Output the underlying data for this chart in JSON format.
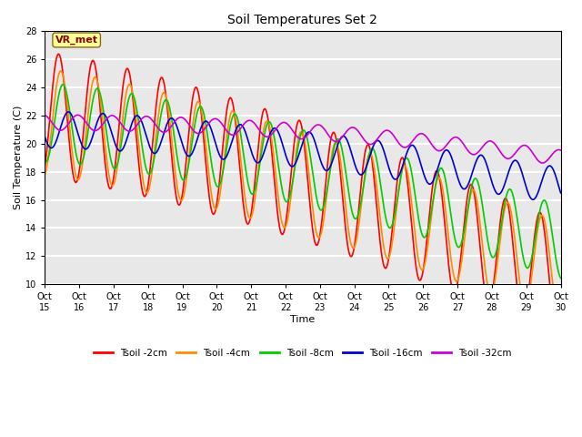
{
  "title": "Soil Temperatures Set 2",
  "xlabel": "Time",
  "ylabel": "Soil Temperature (C)",
  "annotation_label": "VR_met",
  "annotation_box_color": "#FFFF99",
  "annotation_text_color": "#8B0000",
  "annotation_border_color": "#8B6914",
  "ylim": [
    10,
    28
  ],
  "yticks": [
    10,
    12,
    14,
    16,
    18,
    20,
    22,
    24,
    26,
    28
  ],
  "xtick_labels": [
    "Oct\n15",
    "Oct\n16",
    "Oct\n17",
    "Oct\n18",
    "Oct\n19",
    "Oct\n20",
    "Oct\n21",
    "Oct\n22",
    "Oct\n23",
    "Oct\n24",
    "Oct\n25",
    "Oct\n26",
    "Oct\n27",
    "Oct\n28",
    "Oct\n29",
    "Oct\n30"
  ],
  "series": {
    "Tsoil -2cm": {
      "color": "#FF0000"
    },
    "Tsoil -4cm": {
      "color": "#FF8C00"
    },
    "Tsoil -8cm": {
      "color": "#00CC00"
    },
    "Tsoil -16cm": {
      "color": "#0000CD"
    },
    "Tsoil -32cm": {
      "color": "#CC00CC"
    }
  },
  "background_color": "#FFFFFF",
  "plot_bg_color": "#E8E8E8",
  "grid_color": "#FFFFFF"
}
